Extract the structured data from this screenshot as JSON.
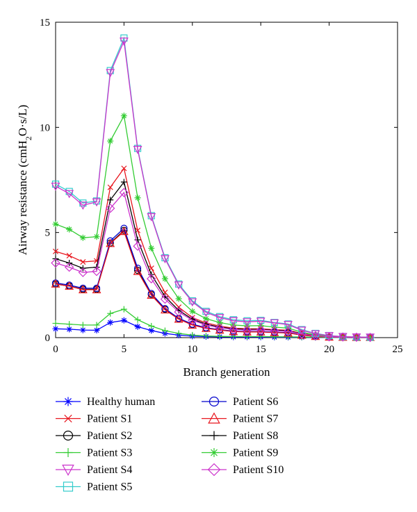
{
  "chart_data": {
    "type": "line",
    "xlabel": "Branch generation",
    "ylabel_main": "Airway resistance (cmH",
    "ylabel_sub": "2",
    "ylabel_tail": "O·s/L)",
    "xlim": [
      0,
      25
    ],
    "ylim": [
      0,
      15
    ],
    "xticks": [
      "0",
      "5",
      "10",
      "15",
      "20",
      "25"
    ],
    "yticks": [
      "0",
      "5",
      "10",
      "15"
    ],
    "grid": false,
    "legend_position": "bottom",
    "x": [
      0,
      1,
      2,
      3,
      4,
      5,
      6,
      7,
      8,
      9,
      10,
      11,
      12,
      13,
      14,
      15,
      16,
      17,
      18,
      19,
      20,
      21,
      22,
      23
    ],
    "series": [
      {
        "name": "Healthy human",
        "color": "#0000ff",
        "marker": "asterisk",
        "values": [
          0.42,
          0.4,
          0.36,
          0.35,
          0.72,
          0.82,
          0.52,
          0.34,
          0.2,
          0.12,
          0.07,
          0.05,
          0.04,
          0.03,
          0.03,
          0.03,
          0.02,
          0.02,
          0.02,
          0.01,
          0.01,
          0.0,
          0.0,
          0.0
        ]
      },
      {
        "name": "Patient S1",
        "color": "#e8141c",
        "marker": "x",
        "values": [
          4.1,
          3.9,
          3.6,
          3.65,
          7.15,
          8.05,
          5.1,
          3.3,
          2.15,
          1.45,
          0.95,
          0.7,
          0.55,
          0.45,
          0.42,
          0.42,
          0.38,
          0.35,
          0.2,
          0.1,
          0.05,
          0.03,
          0.02,
          0.01
        ]
      },
      {
        "name": "Patient S2",
        "color": "#000000",
        "marker": "circle",
        "values": [
          2.55,
          2.45,
          2.3,
          2.3,
          4.5,
          5.1,
          3.2,
          2.05,
          1.35,
          0.9,
          0.62,
          0.45,
          0.37,
          0.3,
          0.28,
          0.28,
          0.25,
          0.23,
          0.12,
          0.06,
          0.03,
          0.02,
          0.01,
          0.01
        ]
      },
      {
        "name": "Patient S3",
        "color": "#33cc33",
        "marker": "plus",
        "values": [
          0.68,
          0.64,
          0.6,
          0.6,
          1.15,
          1.35,
          0.85,
          0.55,
          0.33,
          0.2,
          0.12,
          0.08,
          0.06,
          0.05,
          0.05,
          0.05,
          0.04,
          0.04,
          0.03,
          0.02,
          0.01,
          0.01,
          0.0,
          0.0
        ]
      },
      {
        "name": "Patient S4",
        "color": "#cc33cc",
        "marker": "triangle-down",
        "values": [
          7.2,
          6.85,
          6.3,
          6.45,
          12.6,
          14.1,
          8.95,
          5.75,
          3.75,
          2.5,
          1.7,
          1.2,
          0.95,
          0.8,
          0.75,
          0.78,
          0.7,
          0.62,
          0.35,
          0.18,
          0.09,
          0.05,
          0.03,
          0.02
        ]
      },
      {
        "name": "Patient S5",
        "color": "#33cccc",
        "marker": "square",
        "values": [
          7.3,
          6.95,
          6.4,
          6.5,
          12.7,
          14.25,
          9.0,
          5.8,
          3.8,
          2.55,
          1.75,
          1.25,
          1.0,
          0.85,
          0.8,
          0.82,
          0.72,
          0.65,
          0.38,
          0.2,
          0.1,
          0.05,
          0.03,
          0.02
        ]
      },
      {
        "name": "Patient S6",
        "color": "#0000cc",
        "marker": "circle",
        "values": [
          2.6,
          2.5,
          2.35,
          2.35,
          4.6,
          5.2,
          3.3,
          2.1,
          1.38,
          0.92,
          0.64,
          0.47,
          0.38,
          0.31,
          0.29,
          0.29,
          0.26,
          0.24,
          0.13,
          0.07,
          0.03,
          0.02,
          0.01,
          0.01
        ]
      },
      {
        "name": "Patient S7",
        "color": "#e8141c",
        "marker": "triangle-up",
        "values": [
          2.55,
          2.45,
          2.28,
          2.28,
          4.48,
          5.05,
          3.15,
          2.02,
          1.32,
          0.88,
          0.6,
          0.44,
          0.36,
          0.29,
          0.27,
          0.27,
          0.24,
          0.22,
          0.12,
          0.06,
          0.03,
          0.02,
          0.01,
          0.01
        ]
      },
      {
        "name": "Patient S8",
        "color": "#000000",
        "marker": "plus",
        "values": [
          3.75,
          3.55,
          3.3,
          3.35,
          6.55,
          7.4,
          4.65,
          3.0,
          1.95,
          1.3,
          0.88,
          0.64,
          0.5,
          0.42,
          0.39,
          0.39,
          0.35,
          0.32,
          0.18,
          0.09,
          0.05,
          0.03,
          0.02,
          0.01
        ]
      },
      {
        "name": "Patient S9",
        "color": "#33cc33",
        "marker": "asterisk",
        "values": [
          5.4,
          5.15,
          4.75,
          4.8,
          9.35,
          10.55,
          6.65,
          4.25,
          2.8,
          1.85,
          1.25,
          0.9,
          0.72,
          0.6,
          0.56,
          0.57,
          0.5,
          0.45,
          0.26,
          0.13,
          0.07,
          0.04,
          0.02,
          0.01
        ]
      },
      {
        "name": "Patient S10",
        "color": "#cc33cc",
        "marker": "diamond",
        "values": [
          3.55,
          3.35,
          3.1,
          3.15,
          6.15,
          6.9,
          4.35,
          2.8,
          1.83,
          1.22,
          0.83,
          0.6,
          0.47,
          0.39,
          0.36,
          0.37,
          0.33,
          0.3,
          0.17,
          0.09,
          0.04,
          0.03,
          0.02,
          0.01
        ]
      }
    ],
    "legend_left": [
      0,
      1,
      3,
      4,
      5
    ],
    "legend_left_extra": [
      2
    ],
    "legend_right": [
      6,
      7,
      8,
      9,
      10
    ]
  }
}
